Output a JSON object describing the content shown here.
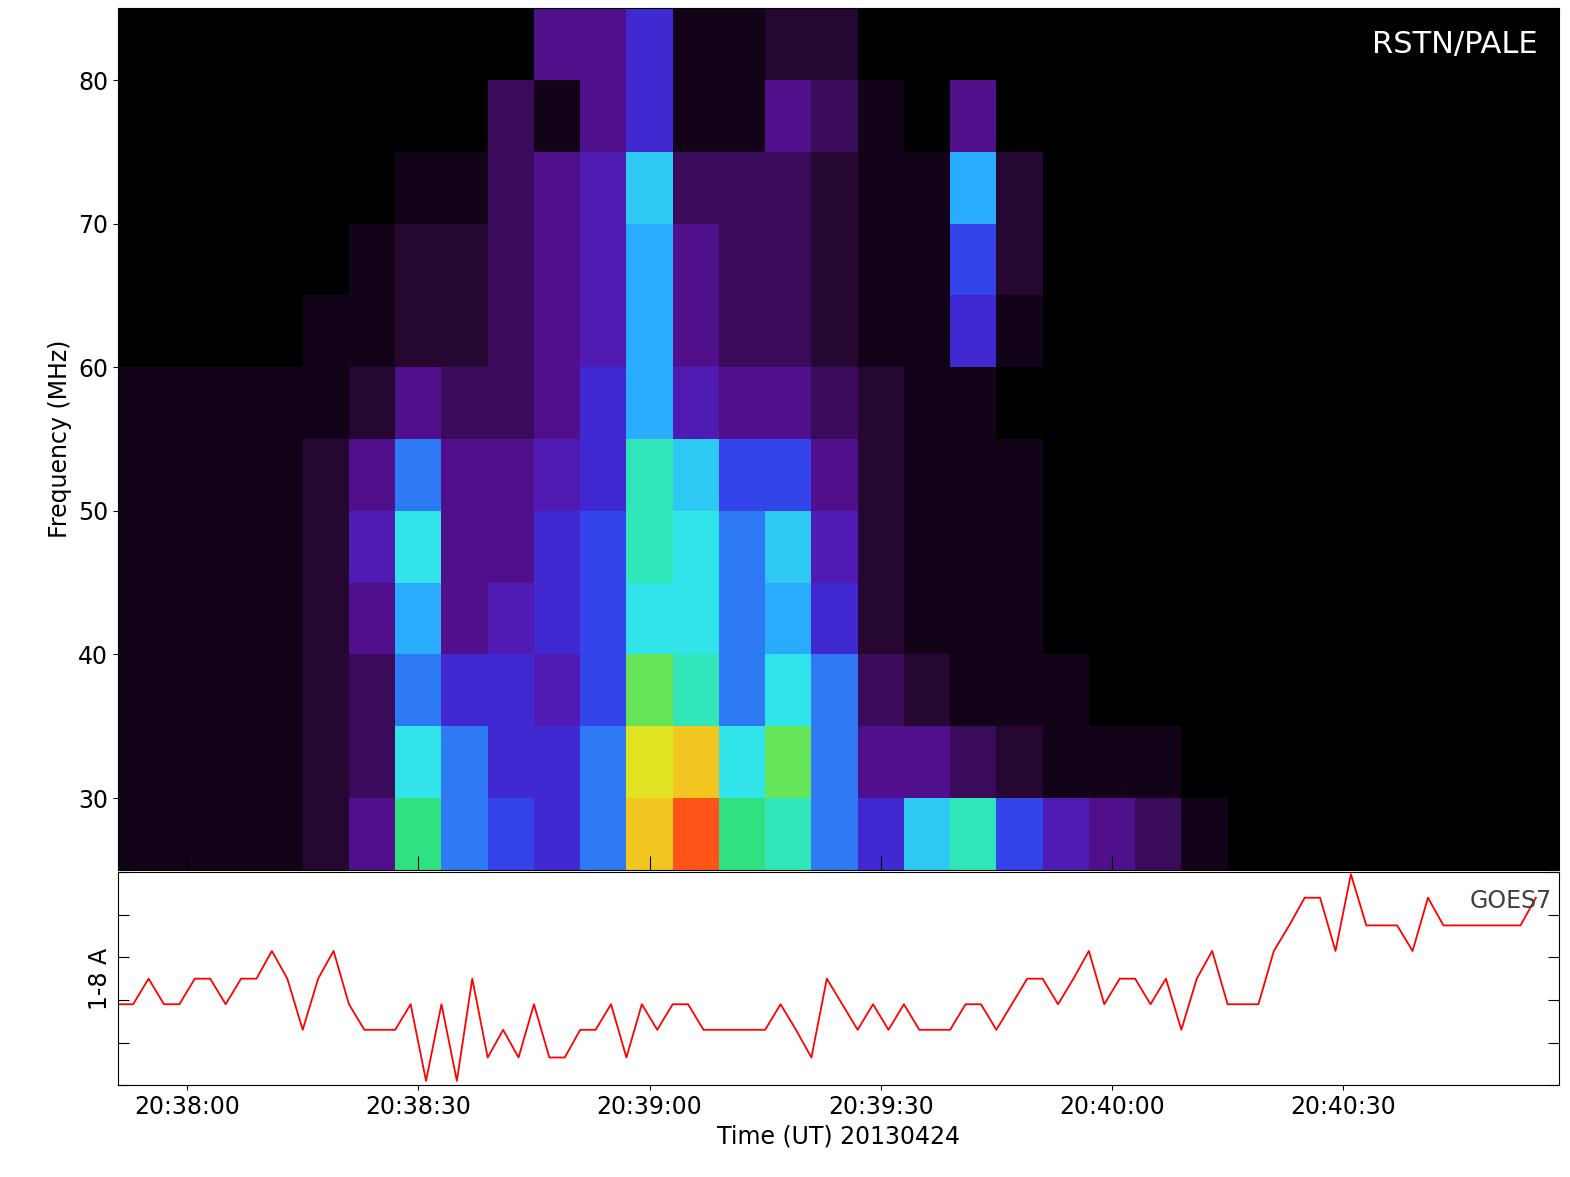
{
  "chart_data": [
    {
      "type": "heatmap",
      "annotation": "RSTN/PALE",
      "y_label": "Frequency (MHz)",
      "x_edges": [
        -9,
        -3,
        3,
        9,
        15,
        21,
        27,
        33,
        39,
        45,
        51,
        57,
        63,
        69,
        75,
        81,
        87,
        93,
        99,
        105,
        111,
        117,
        123,
        129,
        135,
        141,
        147,
        153,
        159,
        165,
        171,
        177
      ],
      "y_edges": [
        25,
        30,
        35,
        40,
        45,
        50,
        55,
        60,
        65,
        70,
        75,
        80,
        85
      ],
      "value_range": [
        0,
        10
      ],
      "cells": [
        [
          0.5,
          0.5,
          0.5,
          0.5,
          1,
          2,
          6.5,
          4,
          3.5,
          3,
          4,
          8.5,
          9.5,
          6.5,
          6,
          4,
          3,
          5,
          6,
          3.5,
          2.5,
          2,
          1.5,
          0.5,
          0,
          0,
          0,
          0,
          0,
          0,
          0
        ],
        [
          0.5,
          0.5,
          0.5,
          0.5,
          1,
          1.5,
          5.5,
          4,
          3,
          3,
          4,
          8,
          8.5,
          5.5,
          7,
          4,
          2,
          2,
          1.5,
          1,
          0.5,
          0.5,
          0.5,
          0,
          0,
          0,
          0,
          0,
          0,
          0,
          0
        ],
        [
          0.5,
          0.5,
          0.5,
          0.5,
          1,
          1.5,
          4,
          3,
          3,
          2.5,
          3.5,
          7,
          6,
          4,
          5.5,
          4,
          1.5,
          1,
          0.5,
          0.5,
          0.5,
          0,
          0,
          0,
          0,
          0,
          0,
          0,
          0,
          0,
          0
        ],
        [
          0.5,
          0.5,
          0.5,
          0.5,
          1,
          2,
          4.5,
          2,
          2.5,
          3,
          3.5,
          5.5,
          5.5,
          4,
          4.5,
          3,
          1,
          0.5,
          0.5,
          0.5,
          0,
          0,
          0,
          0,
          0,
          0,
          0,
          0,
          0,
          0,
          0
        ],
        [
          0.5,
          0.5,
          0.5,
          0.5,
          1,
          2.5,
          5.5,
          2,
          2,
          3,
          3.5,
          6,
          5.5,
          4,
          5,
          2.5,
          1,
          0.5,
          0.5,
          0.5,
          0,
          0,
          0,
          0,
          0,
          0,
          0,
          0,
          0,
          0,
          0
        ],
        [
          0.5,
          0.5,
          0.5,
          0.5,
          1,
          2,
          4,
          2,
          2,
          2.5,
          3,
          6,
          5,
          3.5,
          3.5,
          2,
          1,
          0.5,
          0.5,
          0.5,
          0,
          0,
          0,
          0,
          0,
          0,
          0,
          0,
          0,
          0,
          0
        ],
        [
          0.5,
          0.5,
          0.5,
          0.5,
          0.5,
          1,
          2,
          1.5,
          1.5,
          2,
          3,
          4.5,
          2.5,
          2,
          2,
          1.5,
          1,
          0.5,
          0.5,
          0,
          0,
          0,
          0,
          0,
          0,
          0,
          0,
          0,
          0,
          0,
          0
        ],
        [
          0,
          0,
          0,
          0,
          0.5,
          0.5,
          1,
          1,
          1.5,
          2,
          2.5,
          4.5,
          2,
          1.5,
          1.5,
          1,
          0.5,
          0.5,
          3,
          0.5,
          0,
          0,
          0,
          0,
          0,
          0,
          0,
          0,
          0,
          0,
          0
        ],
        [
          0,
          0,
          0,
          0,
          0,
          0.5,
          1,
          1,
          1.5,
          2,
          2.5,
          4.5,
          2,
          1.5,
          1.5,
          1,
          0.5,
          0.5,
          3.5,
          1,
          0,
          0,
          0,
          0,
          0,
          0,
          0,
          0,
          0,
          0,
          0
        ],
        [
          0,
          0,
          0,
          0,
          0,
          0,
          0.5,
          0.5,
          1.5,
          2,
          2.5,
          5,
          1.5,
          1.5,
          1.5,
          1,
          0.5,
          0.5,
          4.5,
          1,
          0,
          0,
          0,
          0,
          0,
          0,
          0,
          0,
          0,
          0,
          0
        ],
        [
          0,
          0,
          0,
          0,
          0,
          0,
          0,
          0,
          1.5,
          0.5,
          2,
          3,
          0.5,
          0.5,
          2,
          1.5,
          0.5,
          0,
          2,
          0,
          0,
          0,
          0,
          0,
          0,
          0,
          0,
          0,
          0,
          0,
          0
        ],
        [
          0,
          0,
          0,
          0,
          0,
          0,
          0,
          0,
          0,
          2,
          2,
          3,
          0.5,
          0.5,
          1,
          1,
          0,
          0,
          0,
          0,
          0,
          0,
          0,
          0,
          0,
          0,
          0,
          0,
          0,
          0,
          0
        ]
      ],
      "xlim": [
        -9,
        178
      ],
      "xticks": [
        0,
        30,
        60,
        90,
        120,
        150
      ],
      "ylim": [
        25,
        85
      ],
      "yticks": [
        30,
        40,
        50,
        60,
        70,
        80
      ],
      "tick_labels": "y"
    },
    {
      "type": "line",
      "annotation": "GOES7",
      "x_label": "Time (UT) 20130424",
      "y_label": "1-8 A",
      "color": "#ff0000",
      "x": [
        -9,
        -7,
        -5,
        -3,
        -1,
        1,
        3,
        5,
        7,
        9,
        11,
        13,
        15,
        17,
        19,
        21,
        23,
        25,
        27,
        29,
        31,
        33,
        35,
        37,
        39,
        41,
        43,
        45,
        47,
        49,
        51,
        53,
        55,
        57,
        59,
        61,
        63,
        65,
        67,
        69,
        71,
        73,
        75,
        77,
        79,
        81,
        83,
        85,
        87,
        89,
        91,
        93,
        95,
        97,
        99,
        101,
        103,
        105,
        107,
        109,
        111,
        113,
        115,
        117,
        119,
        121,
        123,
        125,
        127,
        129,
        131,
        133,
        135,
        137,
        139,
        141,
        143,
        145,
        147,
        149,
        151,
        153,
        155,
        157,
        159,
        161,
        163,
        165,
        167,
        169,
        171,
        173,
        175
      ],
      "values": [
        3.8,
        3.8,
        5.0,
        3.8,
        3.8,
        5.0,
        5.0,
        3.8,
        5.0,
        5.0,
        6.3,
        5.0,
        2.6,
        5.0,
        6.3,
        3.8,
        2.6,
        2.6,
        2.6,
        3.8,
        0.2,
        3.8,
        0.2,
        5.0,
        1.3,
        2.6,
        1.3,
        3.8,
        1.3,
        1.3,
        2.6,
        2.6,
        3.8,
        1.3,
        3.8,
        2.6,
        3.8,
        3.8,
        2.6,
        2.6,
        2.6,
        2.6,
        2.6,
        3.8,
        2.6,
        1.3,
        5.0,
        3.8,
        2.6,
        3.8,
        2.6,
        3.8,
        2.6,
        2.6,
        2.6,
        3.8,
        3.8,
        2.6,
        3.8,
        5.0,
        5.0,
        3.8,
        5.0,
        6.3,
        3.8,
        5.0,
        5.0,
        3.8,
        5.0,
        2.6,
        5.0,
        6.3,
        3.8,
        3.8,
        3.8,
        6.3,
        7.5,
        8.8,
        8.8,
        6.3,
        9.9,
        7.5,
        7.5,
        7.5,
        6.3,
        8.8,
        7.5,
        7.5,
        7.5,
        7.5,
        7.5,
        7.5,
        8.8
      ],
      "xlim": [
        -9,
        178
      ],
      "xticks": [
        {
          "value": 0,
          "label": "20:38:00"
        },
        {
          "value": 30,
          "label": "20:38:30"
        },
        {
          "value": 60,
          "label": "20:39:00"
        },
        {
          "value": 90,
          "label": "20:39:30"
        },
        {
          "value": 120,
          "label": "20:40:00"
        },
        {
          "value": 150,
          "label": "20:40:30"
        }
      ],
      "ylim": [
        0,
        10
      ],
      "yticks": [
        0,
        2,
        4,
        6,
        8,
        10
      ],
      "tick_labels": "x"
    }
  ]
}
